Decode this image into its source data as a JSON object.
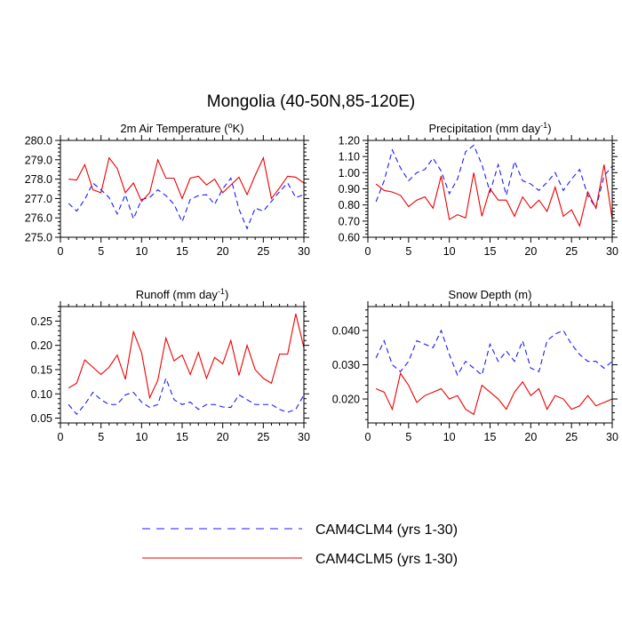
{
  "figure": {
    "title": "Mongolia (40-50N,85-120E)"
  },
  "legend": [
    {
      "name": "CAM4CLM4 (yrs 1-30)",
      "color": "#1a1aff",
      "style": "dashed"
    },
    {
      "name": "CAM4CLM5 (yrs 1-30)",
      "color": "#ee0000",
      "style": "solid"
    }
  ],
  "chart_data": [
    {
      "type": "line",
      "title_main": "2m Air Temperature (",
      "title_sup": "o",
      "title_end": "K)",
      "xlim": [
        0,
        30
      ],
      "ylim": [
        275.0,
        280.0
      ],
      "xticks": [
        "0",
        "5",
        "10",
        "15",
        "20",
        "25",
        "30"
      ],
      "yticks": [
        "275.0",
        "276.0",
        "277.0",
        "278.0",
        "279.0",
        "280.0"
      ],
      "yticks_values": [
        275.0,
        276.0,
        277.0,
        278.0,
        279.0,
        280.0
      ],
      "x": [
        1,
        2,
        3,
        4,
        5,
        6,
        7,
        8,
        9,
        10,
        11,
        12,
        13,
        14,
        15,
        16,
        17,
        18,
        19,
        20,
        21,
        22,
        23,
        24,
        25,
        26,
        27,
        28,
        29,
        30
      ],
      "series": [
        {
          "name": "CAM4CLM4 (yrs 1-30)",
          "values": [
            276.75,
            276.35,
            276.95,
            277.8,
            277.45,
            277.05,
            276.2,
            277.2,
            275.95,
            276.95,
            277.05,
            277.45,
            277.15,
            276.7,
            275.8,
            276.95,
            277.15,
            277.2,
            276.7,
            277.5,
            278.05,
            276.45,
            275.45,
            276.5,
            276.35,
            276.85,
            277.35,
            277.8,
            277.05,
            277.2
          ]
        },
        {
          "name": "CAM4CLM5 (yrs 1-30)",
          "values": [
            278.0,
            277.95,
            278.75,
            277.45,
            277.3,
            279.1,
            278.55,
            277.3,
            277.8,
            276.85,
            277.3,
            279.0,
            278.05,
            278.05,
            277.0,
            278.05,
            278.15,
            277.7,
            278.0,
            277.3,
            277.7,
            278.1,
            277.2,
            278.2,
            279.1,
            277.0,
            277.55,
            278.15,
            278.1,
            277.8
          ]
        }
      ]
    },
    {
      "type": "line",
      "title_main": "Precipitation (mm day",
      "title_sup": "-1",
      "title_end": ")",
      "xlim": [
        0,
        30
      ],
      "ylim": [
        0.6,
        1.2
      ],
      "xticks": [
        "0",
        "5",
        "10",
        "15",
        "20",
        "25",
        "30"
      ],
      "yticks": [
        "0.60",
        "0.70",
        "0.80",
        "0.90",
        "1.00",
        "1.10",
        "1.20"
      ],
      "yticks_values": [
        0.6,
        0.7,
        0.8,
        0.9,
        1.0,
        1.1,
        1.2
      ],
      "x": [
        1,
        2,
        3,
        4,
        5,
        6,
        7,
        8,
        9,
        10,
        11,
        12,
        13,
        14,
        15,
        16,
        17,
        18,
        19,
        20,
        21,
        22,
        23,
        24,
        25,
        26,
        27,
        28,
        29,
        30
      ],
      "series": [
        {
          "name": "CAM4CLM4 (yrs 1-30)",
          "values": [
            0.82,
            0.95,
            1.14,
            1.03,
            0.95,
            1.0,
            1.02,
            1.09,
            1.01,
            0.87,
            0.96,
            1.13,
            1.17,
            1.05,
            0.88,
            1.05,
            0.86,
            1.07,
            0.95,
            0.93,
            0.89,
            0.94,
            1.0,
            0.89,
            0.96,
            1.02,
            0.86,
            0.78,
            0.98,
            1.04
          ]
        },
        {
          "name": "CAM4CLM5 (yrs 1-30)",
          "values": [
            0.93,
            0.89,
            0.88,
            0.86,
            0.79,
            0.83,
            0.85,
            0.78,
            0.98,
            0.71,
            0.74,
            0.72,
            1.0,
            0.73,
            0.9,
            0.83,
            0.83,
            0.73,
            0.85,
            0.78,
            0.83,
            0.76,
            0.91,
            0.73,
            0.77,
            0.67,
            0.88,
            0.78,
            1.05,
            0.71
          ]
        }
      ]
    },
    {
      "type": "line",
      "title_main": "Runoff (mm day",
      "title_sup": "-1",
      "title_end": ")",
      "xlim": [
        0,
        30
      ],
      "ylim": [
        0.04,
        0.28
      ],
      "xticks": [
        "0",
        "5",
        "10",
        "15",
        "20",
        "25",
        "30"
      ],
      "yticks": [
        "0.05",
        "0.10",
        "0.15",
        "0.20",
        "0.25"
      ],
      "yticks_values": [
        0.05,
        0.1,
        0.15,
        0.2,
        0.25
      ],
      "x": [
        1,
        2,
        3,
        4,
        5,
        6,
        7,
        8,
        9,
        10,
        11,
        12,
        13,
        14,
        15,
        16,
        17,
        18,
        19,
        20,
        21,
        22,
        23,
        24,
        25,
        26,
        27,
        28,
        29,
        30
      ],
      "series": [
        {
          "name": "CAM4CLM4 (yrs 1-30)",
          "values": [
            0.078,
            0.058,
            0.078,
            0.103,
            0.088,
            0.078,
            0.078,
            0.098,
            0.103,
            0.083,
            0.072,
            0.078,
            0.132,
            0.088,
            0.078,
            0.083,
            0.068,
            0.078,
            0.078,
            0.073,
            0.072,
            0.098,
            0.088,
            0.078,
            0.078,
            0.078,
            0.068,
            0.062,
            0.068,
            0.098
          ]
        },
        {
          "name": "CAM4CLM5 (yrs 1-30)",
          "values": [
            0.112,
            0.122,
            0.17,
            0.155,
            0.14,
            0.155,
            0.18,
            0.13,
            0.228,
            0.185,
            0.092,
            0.128,
            0.215,
            0.168,
            0.18,
            0.14,
            0.185,
            0.132,
            0.175,
            0.162,
            0.21,
            0.138,
            0.2,
            0.15,
            0.132,
            0.122,
            0.182,
            0.182,
            0.265,
            0.195
          ]
        }
      ]
    },
    {
      "type": "line",
      "title_main": "Snow Depth (m)",
      "title_sup": "",
      "title_end": "",
      "xlim": [
        0,
        30
      ],
      "ylim": [
        0.013,
        0.047
      ],
      "xticks": [
        "0",
        "5",
        "10",
        "15",
        "20",
        "25",
        "30"
      ],
      "yticks": [
        "0.020",
        "0.030",
        "0.040"
      ],
      "yticks_values": [
        0.02,
        0.03,
        0.04
      ],
      "x": [
        1,
        2,
        3,
        4,
        5,
        6,
        7,
        8,
        9,
        10,
        11,
        12,
        13,
        14,
        15,
        16,
        17,
        18,
        19,
        20,
        21,
        22,
        23,
        24,
        25,
        26,
        27,
        28,
        29,
        30
      ],
      "series": [
        {
          "name": "CAM4CLM4 (yrs 1-30)",
          "values": [
            0.032,
            0.037,
            0.03,
            0.028,
            0.031,
            0.037,
            0.036,
            0.035,
            0.04,
            0.033,
            0.027,
            0.031,
            0.029,
            0.027,
            0.036,
            0.031,
            0.034,
            0.031,
            0.037,
            0.029,
            0.028,
            0.037,
            0.039,
            0.04,
            0.036,
            0.033,
            0.031,
            0.031,
            0.029,
            0.031
          ]
        },
        {
          "name": "CAM4CLM5 (yrs 1-30)",
          "values": [
            0.023,
            0.022,
            0.017,
            0.0275,
            0.024,
            0.019,
            0.021,
            0.022,
            0.023,
            0.02,
            0.021,
            0.017,
            0.0155,
            0.024,
            0.022,
            0.02,
            0.017,
            0.022,
            0.025,
            0.021,
            0.023,
            0.017,
            0.021,
            0.02,
            0.017,
            0.018,
            0.021,
            0.018,
            0.019,
            0.02
          ]
        }
      ]
    }
  ]
}
